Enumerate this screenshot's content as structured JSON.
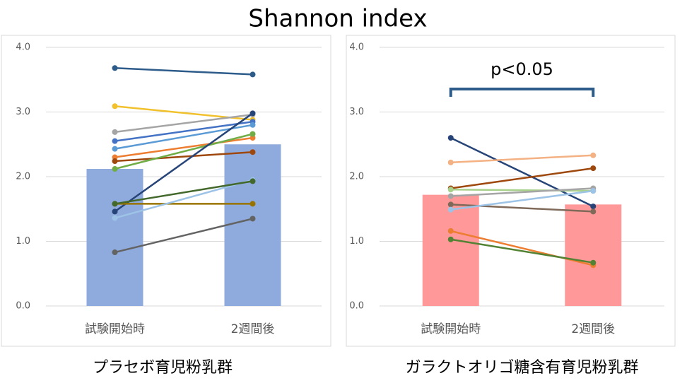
{
  "title": "Shannon index",
  "chart_data": [
    {
      "type": "bar",
      "xlabel": "プラセボ育児粉乳群",
      "categories": [
        "試験開始時",
        "2週間後"
      ],
      "values": [
        2.12,
        2.5
      ],
      "color": "#8faadc",
      "ylim": [
        0,
        4
      ],
      "yticks": [
        {
          "value": 0,
          "label": "0.0"
        },
        {
          "value": 1,
          "label": "1.0"
        },
        {
          "value": 2,
          "label": "2.0"
        },
        {
          "value": 3,
          "label": "3.0"
        },
        {
          "value": 4,
          "label": "4.0"
        }
      ],
      "grid": true,
      "series": [
        {
          "color": "#2e5c8a",
          "values": [
            3.68,
            3.58
          ]
        },
        {
          "color": "#f2c12e",
          "values": [
            3.09,
            2.88
          ]
        },
        {
          "color": "#a5a5a5",
          "values": [
            2.69,
            2.96
          ]
        },
        {
          "color": "#4472c4",
          "values": [
            2.55,
            2.85
          ]
        },
        {
          "color": "#5b9bd5",
          "values": [
            2.43,
            2.8
          ]
        },
        {
          "color": "#ed7d31",
          "values": [
            2.3,
            2.6
          ]
        },
        {
          "color": "#9e480e",
          "values": [
            2.24,
            2.38
          ]
        },
        {
          "color": "#70ad47",
          "values": [
            2.12,
            2.66
          ]
        },
        {
          "color": "#264478",
          "values": [
            1.46,
            2.98
          ]
        },
        {
          "color": "#997300",
          "values": [
            1.58,
            1.58
          ]
        },
        {
          "color": "#9dc3e6",
          "values": [
            1.36,
            1.95
          ]
        },
        {
          "color": "#43682b",
          "values": [
            1.58,
            1.93
          ]
        },
        {
          "color": "#636363",
          "values": [
            0.83,
            1.35
          ]
        }
      ]
    },
    {
      "type": "bar",
      "xlabel": "ガラクトオリゴ糖含有育児粉乳群",
      "categories": [
        "試験開始時",
        "2週間後"
      ],
      "values": [
        1.72,
        1.57
      ],
      "color": "#ff9999",
      "ylim": [
        0,
        4
      ],
      "yticks": [
        {
          "value": 0,
          "label": "0.0"
        },
        {
          "value": 1,
          "label": "1.0"
        },
        {
          "value": 2,
          "label": "2.0"
        },
        {
          "value": 3,
          "label": "3.0"
        },
        {
          "value": 4,
          "label": "4.0"
        }
      ],
      "grid": true,
      "annotation": "p<0.05",
      "series": [
        {
          "color": "#264478",
          "values": [
            2.6,
            1.54
          ]
        },
        {
          "color": "#f4b183",
          "values": [
            2.22,
            2.33
          ]
        },
        {
          "color": "#9e480e",
          "values": [
            1.82,
            2.13
          ]
        },
        {
          "color": "#a9d18e",
          "values": [
            1.8,
            1.78
          ]
        },
        {
          "color": "#a5a5a5",
          "values": [
            1.7,
            1.82
          ]
        },
        {
          "color": "#7f6a5a",
          "values": [
            1.57,
            1.46
          ]
        },
        {
          "color": "#9dc3e6",
          "values": [
            1.49,
            1.78
          ]
        },
        {
          "color": "#ed7d31",
          "values": [
            1.16,
            0.63
          ]
        },
        {
          "color": "#548235",
          "values": [
            1.03,
            0.67
          ]
        }
      ]
    }
  ]
}
